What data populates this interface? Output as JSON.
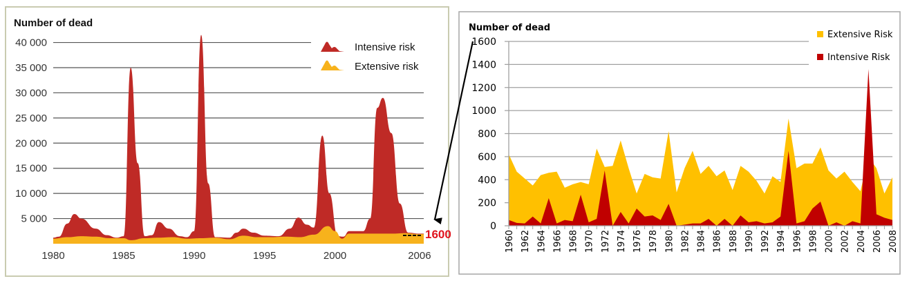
{
  "colors": {
    "left_intensive": "#bf2a26",
    "left_extensive": "#f7b21c",
    "right_intensive": "#c00000",
    "right_extensive": "#ffc000",
    "annotation_red": "#e0141e",
    "left_frame": "#c9cbb0",
    "right_frame": "#a6a6a6"
  },
  "annotation": {
    "value_label": "1600"
  },
  "chart_data": [
    {
      "type": "area",
      "title": "",
      "ylabel": "Number of dead",
      "xlabel": "",
      "ylim": [
        0,
        42000
      ],
      "xlim": [
        1980,
        2006.3
      ],
      "grid": true,
      "legend": "top-right",
      "x_tick_labels": [
        "1980",
        "1985",
        "1990",
        "1995",
        "2000",
        "2006"
      ],
      "x_tick_values": [
        1980,
        1985,
        1990,
        1995,
        2000,
        2006
      ],
      "y_tick_labels": [
        "5 000",
        "10 000",
        "15 000",
        "20 000",
        "25 000",
        "30 000",
        "35 000",
        "40 000"
      ],
      "y_tick_values": [
        5000,
        10000,
        15000,
        20000,
        25000,
        30000,
        35000,
        40000
      ],
      "legend_entries": [
        "Intensive risk",
        "Extensive risk"
      ],
      "series": [
        {
          "name": "Intensive risk",
          "x": [
            1980,
            1980.4,
            1981,
            1981.5,
            1982,
            1983,
            1983.8,
            1984.5,
            1985.0,
            1985.5,
            1986.0,
            1986.5,
            1987.0,
            1987.5,
            1988.2,
            1989,
            1989.5,
            1990.0,
            1990.5,
            1991.0,
            1991.5,
            1992.5,
            1993,
            1993.5,
            1994.2,
            1995,
            1996,
            1996.8,
            1997.4,
            1998.0,
            1998.5,
            1999.1,
            1999.6,
            2000.2,
            2000.6,
            2001,
            2002,
            2002.5,
            2003.0,
            2003.4,
            2004.0,
            2004.6,
            2005.2,
            2006,
            2006.3
          ],
          "values": [
            1200,
            1400,
            4000,
            5900,
            5000,
            3000,
            1700,
            1200,
            1500,
            35000,
            16000,
            1500,
            1700,
            4300,
            3000,
            1500,
            1300,
            2500,
            41500,
            12000,
            1300,
            1200,
            2200,
            3000,
            2200,
            1600,
            1500,
            3000,
            5200,
            3800,
            3200,
            21500,
            10000,
            1500,
            1400,
            2500,
            2500,
            5000,
            27000,
            29000,
            22000,
            8000,
            2200,
            2000,
            2000
          ]
        },
        {
          "name": "Extensive risk",
          "x": [
            1980,
            1981,
            1982,
            1983,
            1984,
            1985,
            1985.5,
            1986.5,
            1987.5,
            1988.5,
            1989.5,
            1990.5,
            1991.5,
            1992.5,
            1993.5,
            1994.5,
            1995.5,
            1996.5,
            1997.5,
            1998.5,
            1999.5,
            2000.0,
            2000.5,
            2001,
            2002,
            2003,
            2004,
            2005,
            2006,
            2006.3
          ],
          "values": [
            1000,
            1300,
            1500,
            1400,
            1100,
            1100,
            700,
            1100,
            1200,
            1300,
            1000,
            1100,
            1200,
            900,
            1600,
            1300,
            1300,
            1400,
            1300,
            1800,
            3500,
            2500,
            1000,
            2000,
            2000,
            2000,
            2000,
            2100,
            1900,
            1900
          ]
        }
      ]
    },
    {
      "type": "area",
      "title": "",
      "ylabel": "Number of dead",
      "xlabel": "",
      "ylim": [
        0,
        1600
      ],
      "xlim": [
        1960,
        2008
      ],
      "grid": true,
      "legend": "top-right",
      "categories": [
        "1960",
        "1961",
        "1962",
        "1963",
        "1964",
        "1965",
        "1966",
        "1967",
        "1968",
        "1969",
        "1970",
        "1971",
        "1972",
        "1973",
        "1974",
        "1975",
        "1976",
        "1977",
        "1978",
        "1979",
        "1980",
        "1981",
        "1982",
        "1983",
        "1984",
        "1985",
        "1986",
        "1987",
        "1988",
        "1989",
        "1990",
        "1991",
        "1992",
        "1993",
        "1994",
        "1995",
        "1996",
        "1997",
        "1998",
        "1999",
        "2000",
        "2001",
        "2002",
        "2003",
        "2004",
        "2005",
        "2006",
        "2007",
        "2008"
      ],
      "x_tick_labels": [
        "1960",
        "1962",
        "1964",
        "1966",
        "1968",
        "1970",
        "1972",
        "1974",
        "1976",
        "1978",
        "1980",
        "1982",
        "1984",
        "1986",
        "1988",
        "1990",
        "1992",
        "1994",
        "1996",
        "1998",
        "2000",
        "2002",
        "2004",
        "2006",
        "2008"
      ],
      "y_tick_labels": [
        "0",
        "200",
        "400",
        "600",
        "800",
        "1000",
        "1200",
        "1400",
        "1600"
      ],
      "y_tick_values": [
        0,
        200,
        400,
        600,
        800,
        1000,
        1200,
        1400,
        1600
      ],
      "legend_entries": [
        "Extensive Risk",
        "Intensive Risk"
      ],
      "series": [
        {
          "name": "Extensive Risk",
          "values": [
            620,
            470,
            410,
            350,
            440,
            460,
            470,
            330,
            360,
            380,
            360,
            670,
            510,
            520,
            740,
            500,
            280,
            450,
            420,
            410,
            820,
            290,
            500,
            650,
            450,
            520,
            430,
            480,
            310,
            520,
            470,
            390,
            280,
            430,
            380,
            930,
            500,
            540,
            540,
            680,
            480,
            410,
            470,
            380,
            300,
            600,
            500,
            280,
            420
          ]
        },
        {
          "name": "Intensive Risk",
          "values": [
            50,
            25,
            20,
            80,
            20,
            240,
            20,
            50,
            40,
            270,
            30,
            60,
            480,
            0,
            120,
            20,
            150,
            80,
            90,
            50,
            190,
            0,
            10,
            20,
            20,
            60,
            0,
            60,
            0,
            90,
            30,
            40,
            20,
            30,
            80,
            650,
            20,
            40,
            150,
            210,
            0,
            30,
            0,
            40,
            20,
            1360,
            100,
            70,
            50
          ]
        }
      ]
    }
  ]
}
